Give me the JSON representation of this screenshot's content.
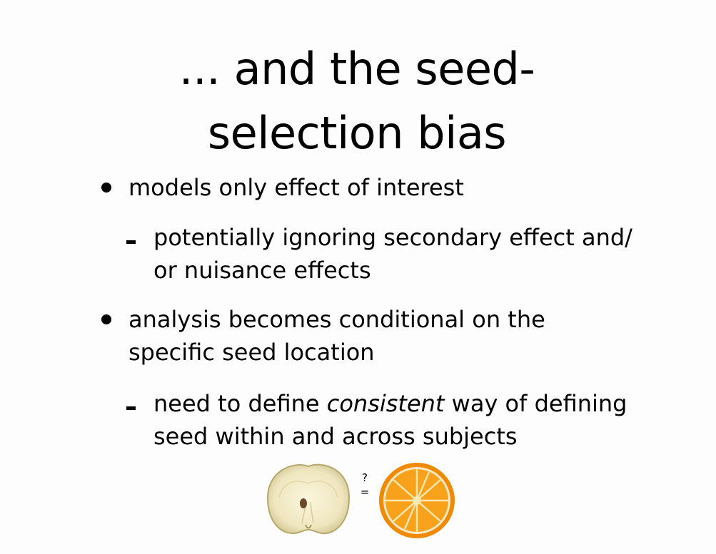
{
  "slide": {
    "title_line1": "... and the seed-",
    "title_line2": "selection bias",
    "bullets": [
      {
        "line1": "models only effect of interest",
        "sub": {
          "line1": "potentially ignoring secondary effect and/",
          "line2": "or nuisance effects"
        }
      },
      {
        "line1": "analysis becomes conditional on the",
        "line2": "specific seed location",
        "sub": {
          "line1_pre": "need to define ",
          "line1_em": "consistent",
          "line1_post": " way of defining",
          "line2": "seed within and across subjects"
        }
      }
    ],
    "comparison": {
      "question": "?",
      "equals": "=",
      "left_image": "apple-half",
      "right_image": "orange-half"
    }
  }
}
